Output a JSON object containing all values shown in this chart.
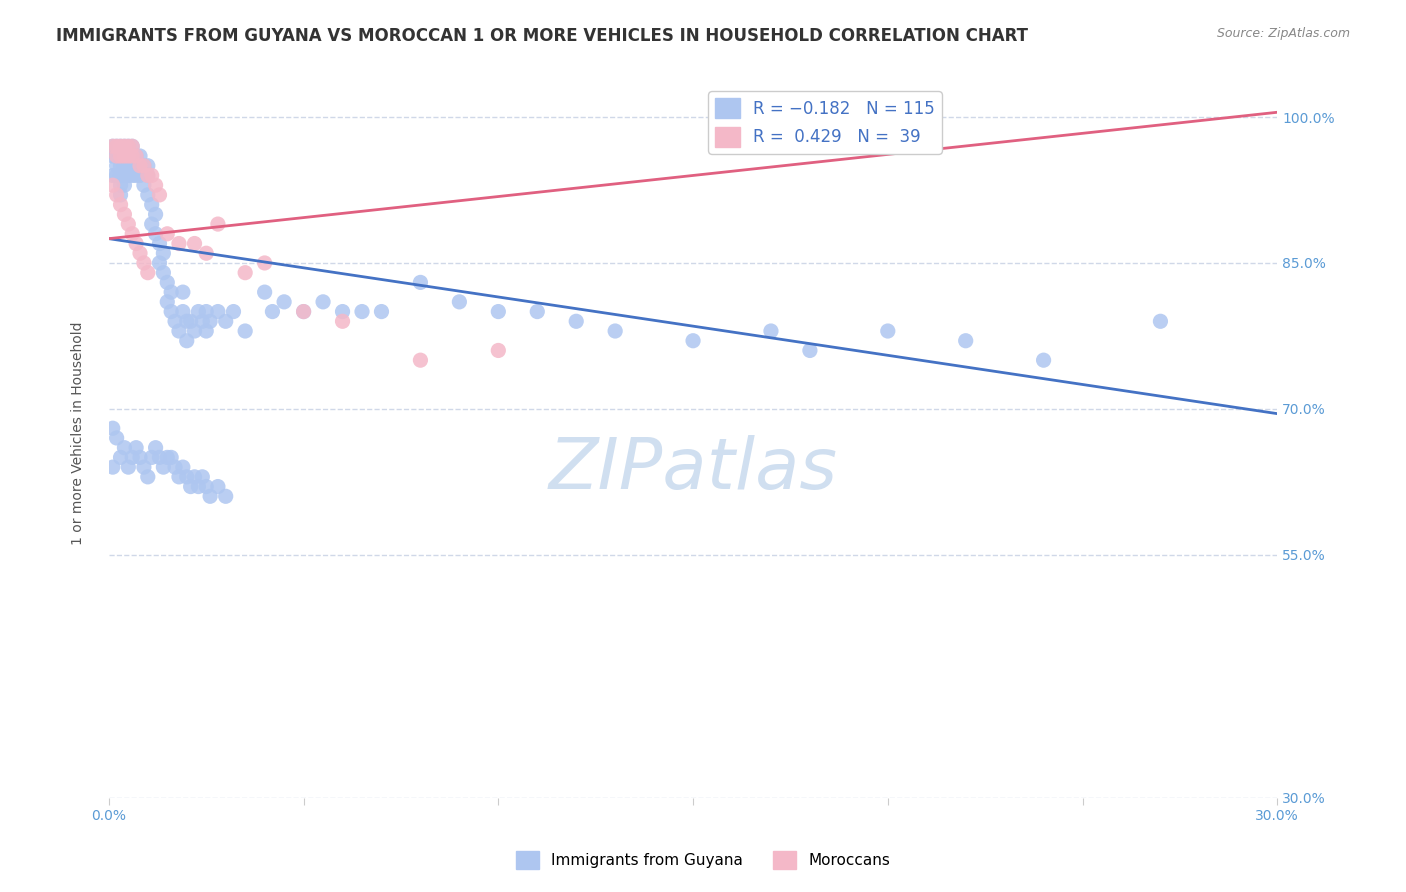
{
  "title": "IMMIGRANTS FROM GUYANA VS MOROCCAN 1 OR MORE VEHICLES IN HOUSEHOLD CORRELATION CHART",
  "source": "Source: ZipAtlas.com",
  "xlabel": "",
  "ylabel": "1 or more Vehicles in Household",
  "xlim": [
    0.0,
    0.3
  ],
  "ylim": [
    0.3,
    1.05
  ],
  "xtick_vals": [
    0.0,
    0.05,
    0.1,
    0.15,
    0.2,
    0.25,
    0.3
  ],
  "xtick_labels": [
    "0.0%",
    "",
    "",
    "",
    "",
    "",
    "30.0%"
  ],
  "ytick_vals": [
    0.3,
    0.55,
    0.7,
    0.85,
    1.0
  ],
  "ytick_labels": [
    "30.0%",
    "55.0%",
    "70.0%",
    "85.0%",
    "100.0%"
  ],
  "legend_entries": [
    {
      "label": "R = -0.182   N = 115",
      "color": "#aec6f0"
    },
    {
      "label": "R =  0.429   N =  39",
      "color": "#f4b8c8"
    }
  ],
  "legend_title": "",
  "scatter_blue": {
    "x": [
      0.001,
      0.001,
      0.001,
      0.002,
      0.002,
      0.002,
      0.002,
      0.003,
      0.003,
      0.003,
      0.003,
      0.003,
      0.003,
      0.004,
      0.004,
      0.004,
      0.004,
      0.004,
      0.005,
      0.005,
      0.005,
      0.005,
      0.006,
      0.006,
      0.006,
      0.006,
      0.007,
      0.007,
      0.007,
      0.008,
      0.008,
      0.009,
      0.009,
      0.01,
      0.01,
      0.01,
      0.011,
      0.011,
      0.012,
      0.012,
      0.013,
      0.013,
      0.014,
      0.014,
      0.015,
      0.015,
      0.016,
      0.016,
      0.017,
      0.018,
      0.019,
      0.019,
      0.02,
      0.02,
      0.021,
      0.022,
      0.023,
      0.024,
      0.025,
      0.025,
      0.026,
      0.028,
      0.03,
      0.032,
      0.035,
      0.04,
      0.042,
      0.045,
      0.05,
      0.055,
      0.06,
      0.065,
      0.07,
      0.08,
      0.09,
      0.1,
      0.11,
      0.12,
      0.13,
      0.15,
      0.17,
      0.18,
      0.2,
      0.22,
      0.24,
      0.27,
      0.001,
      0.001,
      0.002,
      0.003,
      0.004,
      0.005,
      0.006,
      0.007,
      0.008,
      0.009,
      0.01,
      0.011,
      0.012,
      0.013,
      0.014,
      0.015,
      0.016,
      0.017,
      0.018,
      0.019,
      0.02,
      0.021,
      0.022,
      0.023,
      0.024,
      0.025,
      0.026,
      0.028,
      0.03
    ],
    "y": [
      0.97,
      0.96,
      0.94,
      0.97,
      0.96,
      0.95,
      0.94,
      0.97,
      0.96,
      0.95,
      0.94,
      0.93,
      0.92,
      0.97,
      0.96,
      0.95,
      0.94,
      0.93,
      0.97,
      0.96,
      0.95,
      0.94,
      0.97,
      0.96,
      0.95,
      0.94,
      0.96,
      0.95,
      0.94,
      0.96,
      0.94,
      0.95,
      0.93,
      0.95,
      0.94,
      0.92,
      0.91,
      0.89,
      0.9,
      0.88,
      0.87,
      0.85,
      0.86,
      0.84,
      0.83,
      0.81,
      0.82,
      0.8,
      0.79,
      0.78,
      0.82,
      0.8,
      0.79,
      0.77,
      0.79,
      0.78,
      0.8,
      0.79,
      0.8,
      0.78,
      0.79,
      0.8,
      0.79,
      0.8,
      0.78,
      0.82,
      0.8,
      0.81,
      0.8,
      0.81,
      0.8,
      0.8,
      0.8,
      0.83,
      0.81,
      0.8,
      0.8,
      0.79,
      0.78,
      0.77,
      0.78,
      0.76,
      0.78,
      0.77,
      0.75,
      0.79,
      0.68,
      0.64,
      0.67,
      0.65,
      0.66,
      0.64,
      0.65,
      0.66,
      0.65,
      0.64,
      0.63,
      0.65,
      0.66,
      0.65,
      0.64,
      0.65,
      0.65,
      0.64,
      0.63,
      0.64,
      0.63,
      0.62,
      0.63,
      0.62,
      0.63,
      0.62,
      0.61,
      0.62,
      0.61
    ]
  },
  "scatter_pink": {
    "x": [
      0.001,
      0.002,
      0.002,
      0.003,
      0.003,
      0.004,
      0.004,
      0.005,
      0.005,
      0.006,
      0.006,
      0.007,
      0.008,
      0.009,
      0.01,
      0.011,
      0.012,
      0.013,
      0.015,
      0.018,
      0.022,
      0.025,
      0.028,
      0.035,
      0.04,
      0.05,
      0.06,
      0.08,
      0.1,
      0.001,
      0.002,
      0.003,
      0.004,
      0.005,
      0.006,
      0.007,
      0.008,
      0.009,
      0.01
    ],
    "y": [
      0.97,
      0.97,
      0.96,
      0.97,
      0.96,
      0.97,
      0.96,
      0.97,
      0.96,
      0.97,
      0.96,
      0.96,
      0.95,
      0.95,
      0.94,
      0.94,
      0.93,
      0.92,
      0.88,
      0.87,
      0.87,
      0.86,
      0.89,
      0.84,
      0.85,
      0.8,
      0.79,
      0.75,
      0.76,
      0.93,
      0.92,
      0.91,
      0.9,
      0.89,
      0.88,
      0.87,
      0.86,
      0.85,
      0.84
    ]
  },
  "line_blue": {
    "x": [
      0.0,
      0.3
    ],
    "y": [
      0.875,
      0.695
    ]
  },
  "line_pink": {
    "x": [
      0.0,
      0.3
    ],
    "y": [
      0.875,
      1.005
    ]
  },
  "watermark": "ZIPatlas",
  "blue_color": "#5b9bd5",
  "pink_color": "#f4a0b8",
  "blue_scatter_color": "#aec6f0",
  "pink_scatter_color": "#f4b8c8",
  "line_blue_color": "#4472c4",
  "line_pink_color": "#e06080",
  "background_color": "#ffffff",
  "grid_color": "#d0d8e8",
  "title_fontsize": 12,
  "axis_label_fontsize": 10,
  "tick_fontsize": 10,
  "legend_fontsize": 12,
  "watermark_color": "#d0dff0",
  "watermark_fontsize": 52
}
